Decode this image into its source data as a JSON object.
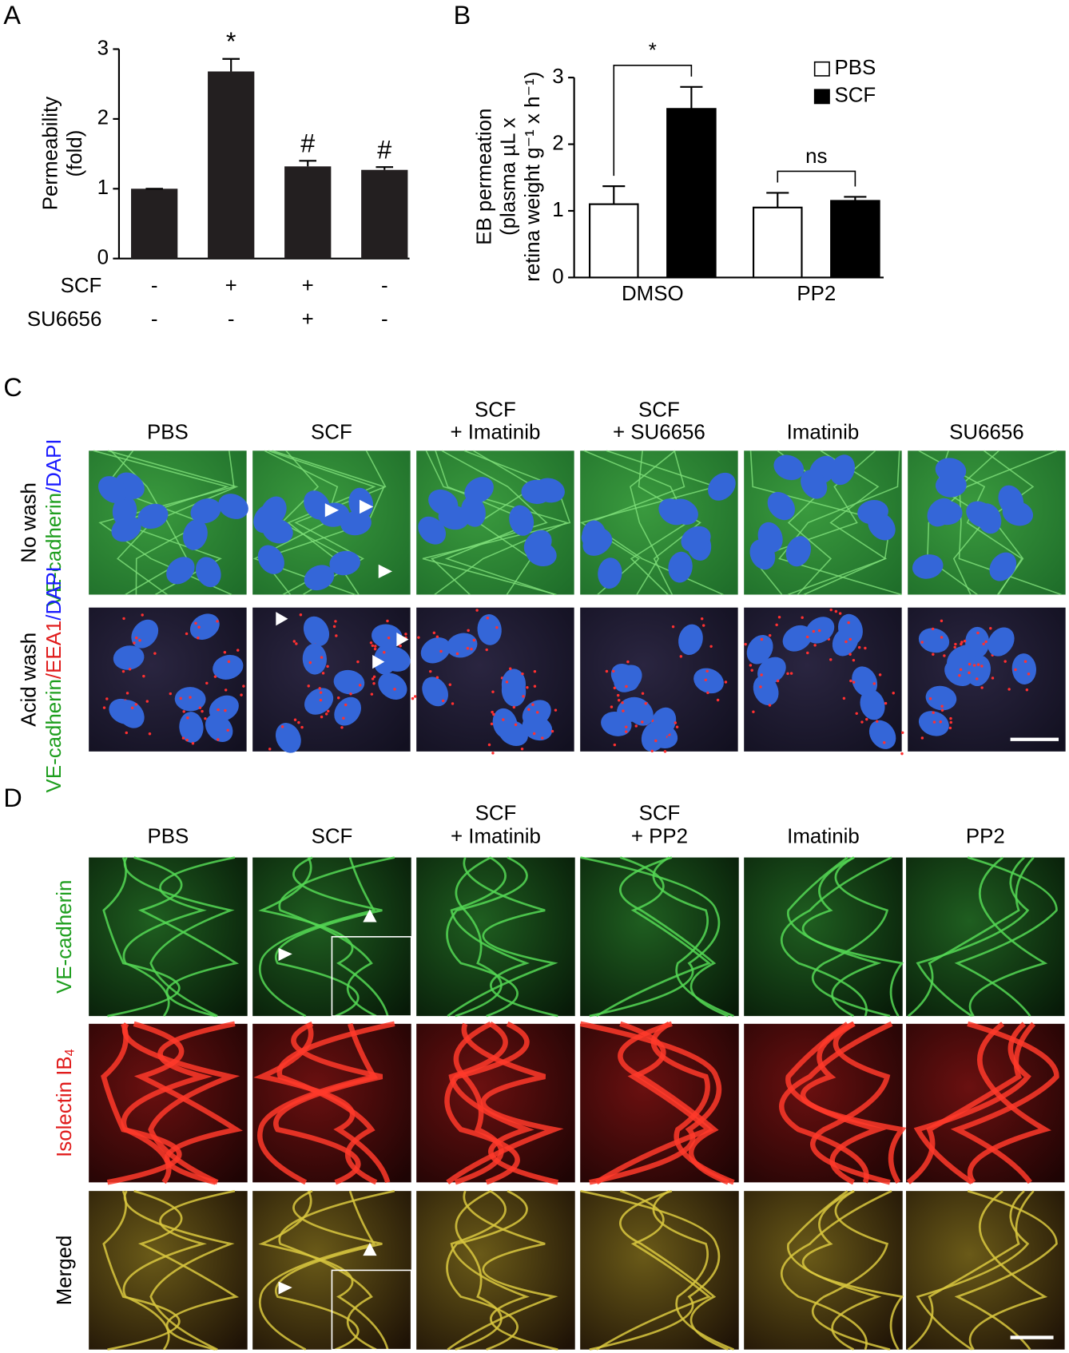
{
  "chart_data": [
    {
      "type": "bar",
      "panel_label": "A",
      "ylabel": [
        "Permeability",
        "(fold)"
      ],
      "values": [
        1,
        2.68,
        1.32,
        1.27
      ],
      "errors": [
        0,
        0.18,
        0.08,
        0.04
      ],
      "color": "#231f20",
      "ylim": [
        0,
        3
      ],
      "yticks": [
        0,
        1,
        2,
        3
      ],
      "annotations": [
        null,
        "*",
        "#",
        "#"
      ],
      "conditions": [
        {
          "name": "SCF",
          "values": [
            "-",
            "+",
            "+",
            "-"
          ]
        },
        {
          "name": "SU6656",
          "values": [
            "-",
            "-",
            "+",
            "-"
          ]
        }
      ]
    },
    {
      "type": "grouped_bar",
      "panel_label": "B",
      "ylabel": [
        "EB permeation",
        "(plasma µL x",
        "retina weight g⁻¹ x h⁻¹)"
      ],
      "categories": [
        "DMSO",
        "PP2"
      ],
      "series": [
        {
          "name": "PBS",
          "color": "#ffffff",
          "values": [
            1.1,
            1.05
          ],
          "errors": [
            0.27,
            0.22
          ]
        },
        {
          "name": "SCF",
          "color": "#000000",
          "values": [
            2.53,
            1.15
          ],
          "errors": [
            0.33,
            0.06
          ]
        }
      ],
      "ylim": [
        0,
        3
      ],
      "yticks": [
        0,
        1,
        2,
        3
      ],
      "legend": "upper right",
      "annotations": [
        "*",
        "ns"
      ]
    }
  ],
  "panel_c": {
    "label": "C",
    "columns": [
      [
        "PBS"
      ],
      [
        "SCF"
      ],
      [
        "SCF",
        "+ Imatinib"
      ],
      [
        "SCF",
        "+ SU6656"
      ],
      [
        "Imatinib"
      ],
      [
        "SU6656"
      ]
    ],
    "rows": [
      {
        "label": "No wash",
        "stain": [
          {
            "text": "VE-cadherin",
            "color": "#1e9e1e"
          },
          {
            "text": "/DAPI",
            "color": "#1a1aff"
          }
        ]
      },
      {
        "label": "Acid wash",
        "stain": [
          {
            "text": "VE-cadherin",
            "color": "#1e9e1e"
          },
          {
            "text": "/EEA1",
            "color": "#e01b1b"
          },
          {
            "text": "/DAPI",
            "color": "#1a1aff"
          }
        ]
      }
    ]
  },
  "panel_d": {
    "label": "D",
    "columns": [
      [
        "PBS"
      ],
      [
        "SCF"
      ],
      [
        "SCF",
        "+ Imatinib"
      ],
      [
        "SCF",
        "+ PP2"
      ],
      [
        "Imatinib"
      ],
      [
        "PP2"
      ]
    ],
    "rows": [
      {
        "label": "VE-cadherin",
        "color": "#1e9e1e"
      },
      {
        "label": "Isolectin IB",
        "sub": "4",
        "color": "#e01b1b"
      },
      {
        "label": "Merged",
        "color": "#000000"
      }
    ]
  }
}
